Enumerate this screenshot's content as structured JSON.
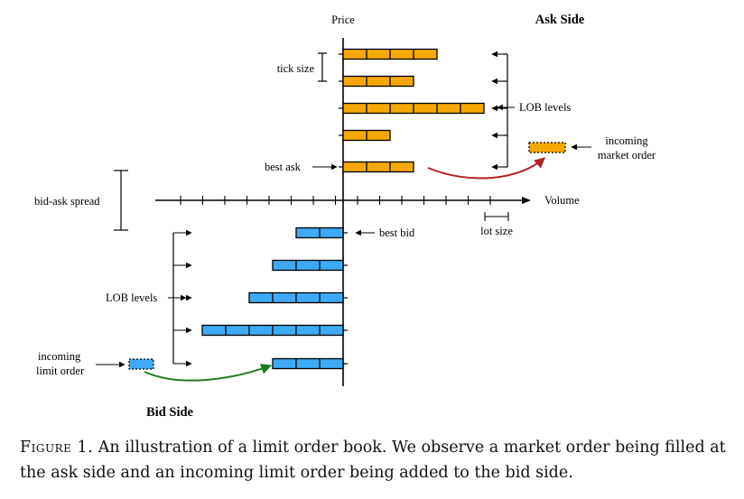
{
  "diagram": {
    "axis": {
      "price_label": "Price",
      "volume_label": "Volume"
    },
    "ask_side": {
      "title": "Ask Side",
      "color": "#f5a800",
      "levels": [
        {
          "units": 4
        },
        {
          "units": 3
        },
        {
          "units": 6
        },
        {
          "units": 2
        },
        {
          "units": 3
        }
      ],
      "levels_label": "LOB levels",
      "best_label": "best ask",
      "tick_size_label": "tick size"
    },
    "bid_side": {
      "title": "Bid Side",
      "color": "#3daaf5",
      "levels": [
        {
          "units": 2
        },
        {
          "units": 3
        },
        {
          "units": 4
        },
        {
          "units": 6
        },
        {
          "units": 3
        }
      ],
      "levels_label": "LOB levels",
      "best_label": "best bid"
    },
    "spread_label": "bid-ask spread",
    "lot_size_label": "lot size",
    "incoming_market_order": {
      "line1": "incoming",
      "line2": "market order",
      "arrow_color": "#b22222"
    },
    "incoming_limit_order": {
      "line1": "incoming",
      "line2": "limit order",
      "arrow_color": "#1e7a1e"
    }
  },
  "caption": {
    "label": "Figure 1.",
    "text": "An illustration of a limit order book. We observe a market order being filled at the ask side and an incoming limit order being added to the bid side."
  }
}
